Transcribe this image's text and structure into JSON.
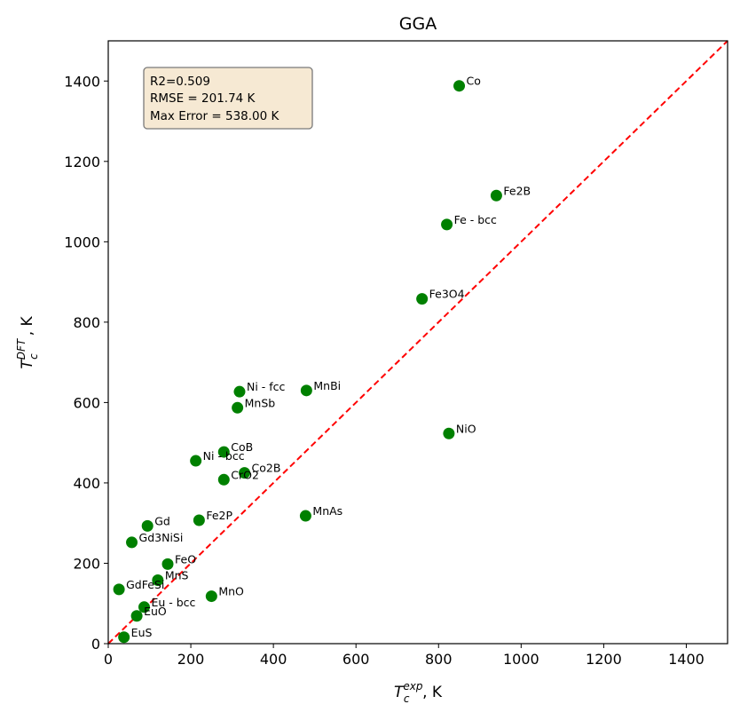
{
  "chart_data": {
    "type": "scatter",
    "title": "GGA",
    "xlabel": {
      "base": "T",
      "sub": "c",
      "sup": "exp",
      "suffix": ", K"
    },
    "ylabel": {
      "base": "T",
      "sub": "c",
      "sup": "DFT",
      "suffix": " , K"
    },
    "xlim": [
      0,
      1500
    ],
    "ylim": [
      0,
      1500
    ],
    "xticks": [
      0,
      200,
      400,
      600,
      800,
      1000,
      1200,
      1400
    ],
    "yticks": [
      0,
      200,
      400,
      600,
      800,
      1000,
      1200,
      1400
    ],
    "marker_color": "#008000",
    "diagonal_color": "#ff0000",
    "stats": [
      "R2=0.509",
      "RMSE = 201.74 K",
      "Max Error = 538.00 K"
    ],
    "points": [
      {
        "label": "Co",
        "x": 850,
        "y": 1388
      },
      {
        "label": "Fe2B",
        "x": 940,
        "y": 1115
      },
      {
        "label": "Fe - bcc",
        "x": 820,
        "y": 1043
      },
      {
        "label": "Fe3O4",
        "x": 760,
        "y": 858
      },
      {
        "label": "Ni - fcc",
        "x": 318,
        "y": 627
      },
      {
        "label": "MnBi",
        "x": 480,
        "y": 630
      },
      {
        "label": "MnSb",
        "x": 313,
        "y": 587
      },
      {
        "label": "NiO",
        "x": 825,
        "y": 523
      },
      {
        "label": "CoB",
        "x": 280,
        "y": 477
      },
      {
        "label": "Ni - bcc",
        "x": 212,
        "y": 455
      },
      {
        "label": "Co2B",
        "x": 330,
        "y": 425
      },
      {
        "label": "CrO2",
        "x": 280,
        "y": 408
      },
      {
        "label": "MnAs",
        "x": 478,
        "y": 318
      },
      {
        "label": "Fe2P",
        "x": 220,
        "y": 307
      },
      {
        "label": "Gd",
        "x": 95,
        "y": 293
      },
      {
        "label": "Gd3NiSi",
        "x": 57,
        "y": 252
      },
      {
        "label": "FeO",
        "x": 144,
        "y": 198
      },
      {
        "label": "MnS",
        "x": 120,
        "y": 158
      },
      {
        "label": "GdFeSi",
        "x": 26,
        "y": 135
      },
      {
        "label": "MnO",
        "x": 250,
        "y": 118
      },
      {
        "label": "Eu - bcc",
        "x": 87,
        "y": 91
      },
      {
        "label": "EuO",
        "x": 69,
        "y": 69
      },
      {
        "label": "EuS",
        "x": 38,
        "y": 16
      }
    ]
  }
}
